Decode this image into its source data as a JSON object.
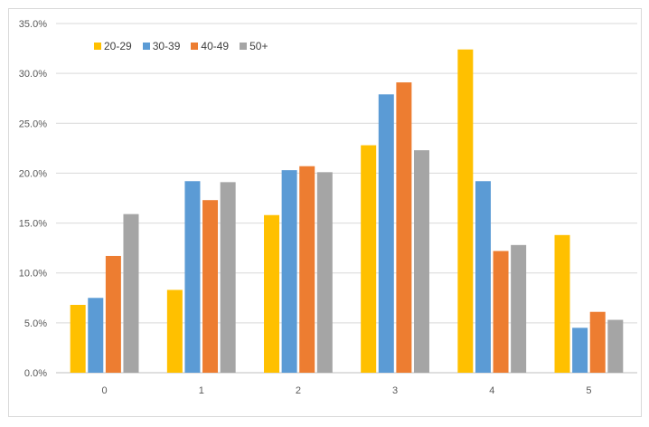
{
  "chart_data": {
    "type": "bar",
    "title": "",
    "xlabel": "",
    "ylabel": "",
    "categories": [
      "0",
      "1",
      "2",
      "3",
      "4",
      "5"
    ],
    "ylim": [
      0,
      35
    ],
    "yticks": [
      "0.0%",
      "5.0%",
      "10.0%",
      "15.0%",
      "20.0%",
      "25.0%",
      "30.0%",
      "35.0%"
    ],
    "grid": true,
    "legend_position": "top-left",
    "series": [
      {
        "name": "20-29",
        "color": "#FFC000",
        "values": [
          6.8,
          8.3,
          15.8,
          22.8,
          32.4,
          13.8
        ]
      },
      {
        "name": "30-39",
        "color": "#5B9BD5",
        "values": [
          7.5,
          19.2,
          20.3,
          27.9,
          19.2,
          4.5
        ]
      },
      {
        "name": "40-49",
        "color": "#ED7D31",
        "values": [
          11.7,
          17.3,
          20.7,
          29.1,
          12.2,
          6.1
        ]
      },
      {
        "name": "50+",
        "color": "#A5A5A5",
        "values": [
          15.9,
          19.1,
          20.1,
          22.3,
          12.8,
          5.3
        ]
      }
    ]
  }
}
